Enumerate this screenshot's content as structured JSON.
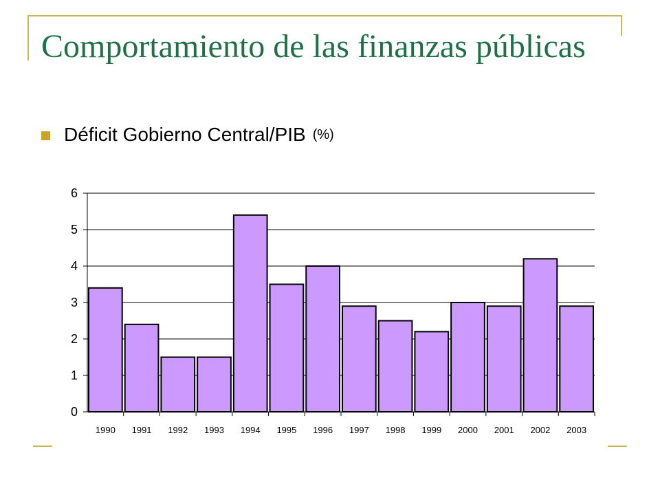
{
  "slide": {
    "title": "Comportamiento de las finanzas públicas",
    "bullet": "Déficit Gobierno Central/PIB",
    "bullet_unit": "(%)"
  },
  "colors": {
    "title": "#1e7145",
    "bar_fill": "#cc99ff",
    "bar_stroke": "#000000",
    "accent": "#c9a32a"
  },
  "chart_data": {
    "type": "bar",
    "categories": [
      "1990",
      "1991",
      "1992",
      "1993",
      "1994",
      "1995",
      "1996",
      "1997",
      "1998",
      "1999",
      "2000",
      "2001",
      "2002",
      "2003"
    ],
    "values": [
      3.4,
      2.4,
      1.5,
      1.5,
      5.4,
      3.5,
      4.0,
      2.9,
      2.5,
      2.2,
      3.0,
      2.9,
      4.2,
      2.9
    ],
    "title": "Déficit Gobierno Central/PIB (%)",
    "xlabel": "",
    "ylabel": "",
    "ylim": [
      0,
      6
    ],
    "yticks": [
      0,
      1,
      2,
      3,
      4,
      5,
      6
    ],
    "grid": true,
    "legend": "none"
  }
}
